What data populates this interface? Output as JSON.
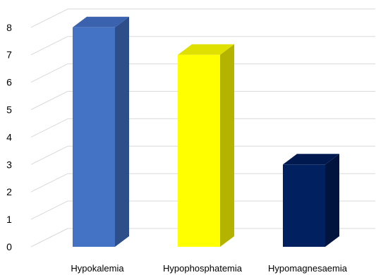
{
  "chart_data": {
    "type": "bar",
    "style": "3d-column",
    "title": "",
    "xlabel": "",
    "ylabel": "",
    "categories": [
      "Hypokalemia",
      "Hypophosphatemia",
      "Hypomagnesaemia"
    ],
    "values": [
      8,
      7,
      3
    ],
    "ylim": [
      0,
      8
    ],
    "yticks": [
      "0",
      "1",
      "2",
      "3",
      "4",
      "5",
      "6",
      "7",
      "8"
    ],
    "grid": true,
    "legend": "none",
    "bar_colors": [
      {
        "front": "#4472C4",
        "side": "#2E4E8A",
        "top": "#3A62AE"
      },
      {
        "front": "#FFFF00",
        "side": "#B3B300",
        "top": "#E0E000"
      },
      {
        "front": "#002060",
        "side": "#00143D",
        "top": "#001A50"
      }
    ]
  }
}
